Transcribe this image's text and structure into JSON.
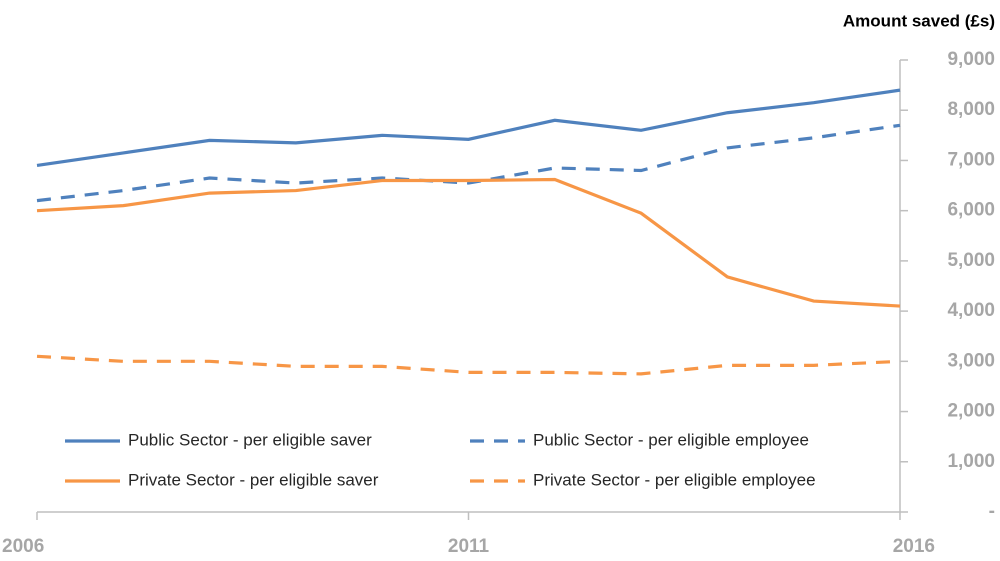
{
  "chart_data": {
    "type": "line",
    "y_axis_label": "Amount saved (£s)",
    "x": [
      2006,
      2007,
      2008,
      2009,
      2010,
      2011,
      2012,
      2013,
      2014,
      2015,
      2016
    ],
    "xlim": [
      2006,
      2016
    ],
    "xticks": [
      2006,
      2011,
      2016
    ],
    "ylim": [
      0,
      9000
    ],
    "yticks": [
      {
        "value": 0,
        "label": "-"
      },
      {
        "value": 1000,
        "label": "1,000"
      },
      {
        "value": 2000,
        "label": "2,000"
      },
      {
        "value": 3000,
        "label": "3,000"
      },
      {
        "value": 4000,
        "label": "4,000"
      },
      {
        "value": 5000,
        "label": "5,000"
      },
      {
        "value": 6000,
        "label": "6,000"
      },
      {
        "value": 7000,
        "label": "7,000"
      },
      {
        "value": 8000,
        "label": "8,000"
      },
      {
        "value": 9000,
        "label": "9,000"
      }
    ],
    "y_axis_side": "right",
    "grid": false,
    "legend_position": "lower left",
    "series": [
      {
        "name": "Public Sector - per eligible saver",
        "color": "#4f81bd",
        "dashed": false,
        "values": [
          6900,
          7150,
          7400,
          7350,
          7500,
          7420,
          7800,
          7600,
          7950,
          8150,
          8400
        ]
      },
      {
        "name": "Public Sector - per eligible employee",
        "color": "#4f81bd",
        "dashed": true,
        "values": [
          6200,
          6400,
          6650,
          6550,
          6650,
          6550,
          6850,
          6800,
          7250,
          7450,
          7700
        ]
      },
      {
        "name": "Private Sector - per eligible saver",
        "color": "#f79646",
        "dashed": false,
        "values": [
          6000,
          6100,
          6350,
          6400,
          6600,
          6600,
          6620,
          5950,
          4680,
          4200,
          4100
        ]
      },
      {
        "name": "Private Sector - per eligible employee",
        "color": "#f79646",
        "dashed": true,
        "values": [
          3100,
          3000,
          3000,
          2900,
          2900,
          2780,
          2780,
          2750,
          2920,
          2920,
          3000
        ]
      }
    ]
  }
}
